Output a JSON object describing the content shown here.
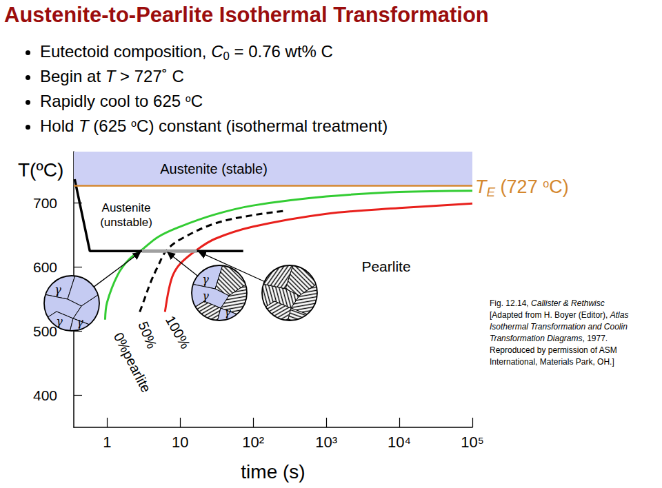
{
  "header": {
    "title": "Austenite-to-Pearlite Isothermal Transformation",
    "bullets": [
      [
        {
          "text": "Eutectoid composition, "
        },
        {
          "text": "C",
          "format": "italic"
        },
        {
          "text": "0",
          "format": "sub"
        },
        {
          "text": " = 0.76 wt% C"
        }
      ],
      [
        {
          "text": "Begin at "
        },
        {
          "text": "T",
          "format": "italic"
        },
        {
          "text": " > 727˚ C"
        }
      ],
      [
        {
          "text": "Rapidly cool to 625 "
        },
        {
          "text": "o",
          "format": "sup"
        },
        {
          "text": "C"
        }
      ],
      [
        {
          "text": "Hold "
        },
        {
          "text": "T",
          "format": "italic"
        },
        {
          "text": " (625 "
        },
        {
          "text": "o",
          "format": "sup"
        },
        {
          "text": "C) constant (isothermal treatment)"
        }
      ]
    ]
  },
  "chart_data": {
    "type": "line",
    "log": "x",
    "grid": false,
    "xlabel": "time (s)",
    "ylabel": "T(ºC)",
    "xlim": [
      0.35,
      100000
    ],
    "xticks": [
      1,
      10,
      {
        "value": 100,
        "label": "10²"
      },
      {
        "value": 1000,
        "label": "10³"
      },
      {
        "value": 10000,
        "label": "10⁴"
      },
      {
        "value": 100000,
        "label": "10⁵"
      }
    ],
    "ylim": [
      350,
      780
    ],
    "yticks": [
      400,
      500,
      600,
      700
    ],
    "series": [
      {
        "name": "0%pearlite",
        "color": "#33cc33",
        "line_style": "solid",
        "x": [
          0.94,
          1,
          1.4,
          2,
          3,
          5,
          10,
          30,
          100,
          1000,
          10000,
          100000
        ],
        "values": [
          518,
          545,
          588,
          612,
          627,
          647,
          663,
          682,
          696,
          710,
          717,
          719
        ]
      },
      {
        "name": "50%",
        "color": "#000000",
        "line_style": "dashed",
        "x": [
          2.8,
          3.2,
          4,
          5,
          6.4,
          10,
          30,
          100,
          290
        ],
        "values": [
          530,
          548,
          578,
          602,
          625,
          643,
          668,
          681,
          688
        ]
      },
      {
        "name": "100%",
        "color": "#e8201c",
        "line_style": "solid",
        "x": [
          6.2,
          7,
          8,
          10,
          17,
          30,
          100,
          1000,
          10000,
          100000
        ],
        "values": [
          530,
          565,
          588,
          605,
          627,
          644,
          663,
          683,
          692,
          699
        ]
      }
    ],
    "cooling_path": {
      "color": "#000000",
      "x": [
        0.36,
        0.58,
        73
      ],
      "values": [
        737,
        625,
        625
      ]
    },
    "transformation_interval": {
      "color": "#a0a0a0",
      "x": [
        3,
        17
      ],
      "values": [
        625,
        625
      ]
    },
    "stable_region": {
      "label": "Austenite (stable)",
      "from": 727,
      "to": 780,
      "color": "#cdd0f5"
    },
    "eutectoid": {
      "value": 727,
      "color": "#d4872e",
      "label": [
        {
          "text": "T",
          "format": "italic"
        },
        {
          "text": "E",
          "format": "italic_sub"
        },
        {
          "text": " (727 "
        },
        {
          "text": "o",
          "format": "sup"
        },
        {
          "text": "C)"
        }
      ]
    },
    "unstable_label": [
      "Austenite",
      "(unstable)"
    ],
    "product_label": "Pearlite"
  },
  "microstructures": [
    {
      "pearlite_percent": 0,
      "labels": [
        "γ",
        "γ",
        "γ"
      ],
      "time": 3,
      "temperature": 625
    },
    {
      "pearlite_percent": 50,
      "labels": [
        "γ",
        "γ",
        "γ"
      ],
      "time": 6.4,
      "temperature": 625
    },
    {
      "pearlite_percent": 100,
      "labels": [],
      "time": 17,
      "temperature": 625
    }
  ],
  "caption": [
    [
      {
        "text": "Fig. 12.14, "
      },
      {
        "text": "Callister & Rethwisc",
        "format": "italic"
      }
    ],
    [
      {
        "text": "[Adapted from H. Boyer (Editor), "
      },
      {
        "text": "Atlas",
        "format": "italic"
      }
    ],
    [
      {
        "text": "Isothermal Transformation and Coolin",
        "format": "italic"
      }
    ],
    [
      {
        "text": "Transformation Diagrams",
        "format": "italic"
      },
      {
        "text": ", 1977."
      }
    ],
    [
      {
        "text": "Reproduced by permission of ASM"
      }
    ],
    [
      {
        "text": "International, Materials Park, OH.]"
      }
    ]
  ]
}
